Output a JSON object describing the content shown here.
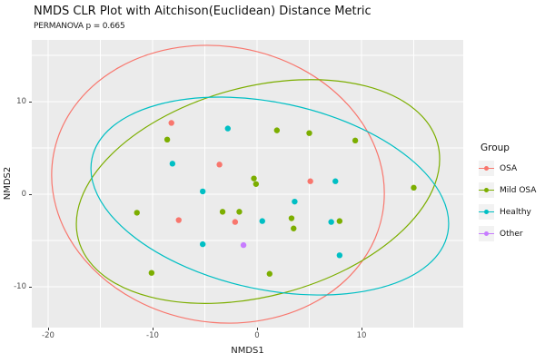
{
  "figure": {
    "title": "NMDS CLR Plot with Aitchison(Euclidean) Distance Metric",
    "subtitle": "PERMANOVA p = 0.665"
  },
  "colors": {
    "background": "#FFFFFF",
    "panel_bg": "#EBEBEB",
    "gridline": "#FFFFFF",
    "tick_label": "#4D4D4D",
    "axis_title": "#1A1A1A",
    "legend_key_bg": "#F2F2F2",
    "osa": "#F8766D",
    "mild_osa": "#7CAE00",
    "healthy": "#00BFC4",
    "other": "#C77CFF"
  },
  "chart_data": {
    "type": "scatter",
    "title": "NMDS CLR Plot with Aitchison(Euclidean) Distance Metric",
    "subtitle": "PERMANOVA p = 0.665",
    "permanova_p": 0.665,
    "xlabel": "NMDS1",
    "ylabel": "NMDS2",
    "xlim": [
      -21.6,
      19.7
    ],
    "ylim": [
      -14.4,
      16.7
    ],
    "x_major_ticks": [
      -20,
      -10,
      0,
      10
    ],
    "x_minor_ticks": [
      -15,
      -5,
      5,
      15
    ],
    "y_major_ticks": [
      10,
      0,
      -10
    ],
    "y_minor_ticks": [
      15,
      5,
      -5
    ],
    "grid": "white major+minor gridlines on grey panel",
    "legend_position": "right",
    "legend_title": "Group",
    "point_radius_px": 3.2,
    "series": [
      {
        "name": "OSA",
        "color": "#F8766D",
        "points": [
          [
            -8.2,
            7.7
          ],
          [
            -3.6,
            3.2
          ],
          [
            5.1,
            1.4
          ],
          [
            -7.5,
            -2.8
          ],
          [
            -2.1,
            -3.0
          ]
        ],
        "ellipse": {
          "cx": -3.74,
          "cy": 1.08,
          "rx": 16.0,
          "ry": 14.9,
          "tilt_deg": 10
        }
      },
      {
        "name": "Mild OSA",
        "color": "#7CAE00",
        "points": [
          [
            1.9,
            6.9
          ],
          [
            5.0,
            6.6
          ],
          [
            9.4,
            5.8
          ],
          [
            -8.6,
            5.9
          ],
          [
            -0.3,
            1.7
          ],
          [
            -0.1,
            1.1
          ],
          [
            15.0,
            0.7
          ],
          [
            -11.5,
            -2.0
          ],
          [
            -3.3,
            -1.9
          ],
          [
            -1.7,
            -1.9
          ],
          [
            3.3,
            -2.6
          ],
          [
            3.5,
            -3.7
          ],
          [
            7.9,
            -2.9
          ],
          [
            -10.1,
            -8.5
          ],
          [
            1.2,
            -8.6
          ]
        ],
        "ellipse": {
          "cx": 0.09,
          "cy": 0.29,
          "rx": 17.8,
          "ry": 11.3,
          "tilt_deg": -15
        }
      },
      {
        "name": "Healthy",
        "color": "#00BFC4",
        "points": [
          [
            -2.8,
            7.1
          ],
          [
            -8.1,
            3.3
          ],
          [
            7.5,
            1.4
          ],
          [
            -5.2,
            0.3
          ],
          [
            3.6,
            -0.8
          ],
          [
            0.5,
            -2.9
          ],
          [
            7.1,
            -3.0
          ],
          [
            -5.2,
            -5.4
          ],
          [
            7.9,
            -6.6
          ]
        ],
        "ellipse": {
          "cx": 1.22,
          "cy": -0.2,
          "rx": 17.4,
          "ry": 10.1,
          "tilt_deg": 12
        }
      },
      {
        "name": "Other",
        "color": "#C77CFF",
        "points": [
          [
            -1.3,
            -5.5
          ]
        ],
        "ellipse": null
      }
    ]
  }
}
